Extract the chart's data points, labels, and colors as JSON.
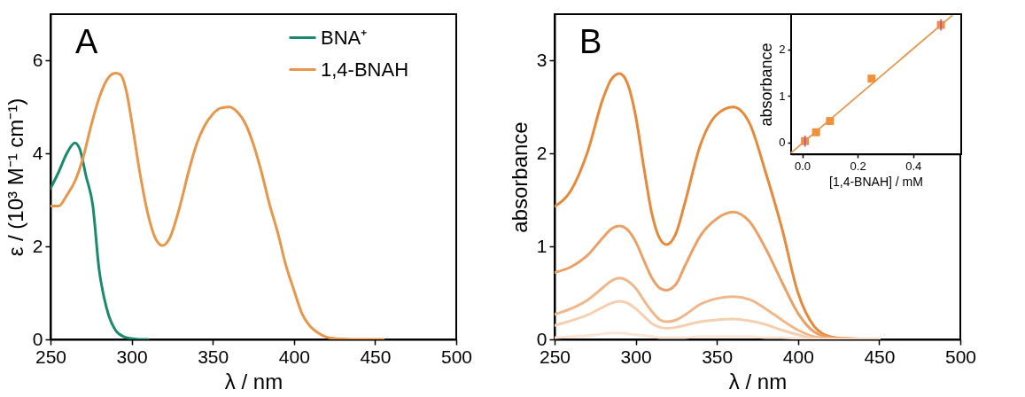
{
  "chart_data": [
    {
      "type": "line",
      "xlabel": "λ / nm",
      "ylabel": "ε / (10³ M⁻¹ cm⁻¹)",
      "xlim": [
        250,
        500
      ],
      "ylim": [
        0,
        7
      ],
      "xticks": [
        250,
        300,
        350,
        400,
        450,
        500
      ],
      "yticks": [
        0,
        2,
        4,
        6
      ],
      "grid": false,
      "legend": "top right",
      "annotations": [
        "A"
      ],
      "series": [
        {
          "name": "BNA⁺",
          "color": "#1a8a6e",
          "x": [
            250,
            255,
            260,
            265,
            268,
            272,
            276,
            280,
            283,
            286,
            290,
            295,
            300,
            305,
            310
          ],
          "values": [
            3.25,
            3.6,
            4.0,
            4.23,
            4.1,
            3.5,
            2.9,
            1.49,
            0.9,
            0.5,
            0.2,
            0.06,
            0.02,
            0.0,
            0.0
          ]
        },
        {
          "name": "1,4-BNAH",
          "color": "#e8964a",
          "x": [
            250,
            255,
            260,
            265,
            270,
            275,
            280,
            285,
            290,
            293,
            297,
            300,
            305,
            310,
            315,
            319,
            323,
            330,
            335,
            340,
            345,
            350,
            355,
            360,
            365,
            370,
            375,
            380,
            385,
            390,
            395,
            400,
            405,
            410,
            415,
            420,
            425,
            430,
            440,
            455
          ],
          "values": [
            2.87,
            2.87,
            3.1,
            3.4,
            3.9,
            4.6,
            5.2,
            5.6,
            5.73,
            5.7,
            5.3,
            4.7,
            3.6,
            2.7,
            2.15,
            2.02,
            2.15,
            2.9,
            3.6,
            4.2,
            4.6,
            4.85,
            4.98,
            5.0,
            4.9,
            4.65,
            4.2,
            3.6,
            2.9,
            2.3,
            1.6,
            1.06,
            0.55,
            0.28,
            0.14,
            0.05,
            0.02,
            0.01,
            0.0,
            0.0
          ]
        }
      ]
    },
    {
      "type": "line",
      "xlabel": "λ / nm",
      "ylabel": "absorbance",
      "xlim": [
        250,
        500
      ],
      "ylim": [
        0,
        3.5
      ],
      "xticks": [
        250,
        300,
        350,
        400,
        450,
        500
      ],
      "yticks": [
        0,
        1,
        2,
        3
      ],
      "grid": false,
      "annotations": [
        "B"
      ],
      "x": [
        250,
        260,
        270,
        280,
        285,
        290,
        295,
        300,
        305,
        310,
        315,
        319,
        325,
        330,
        340,
        350,
        360,
        370,
        380,
        390,
        400,
        410,
        420,
        430,
        450
      ],
      "series": [
        {
          "color": "#e8893a",
          "values": [
            1.43,
            1.6,
            2.0,
            2.6,
            2.8,
            2.86,
            2.75,
            2.4,
            1.85,
            1.35,
            1.08,
            1.02,
            1.15,
            1.45,
            2.1,
            2.42,
            2.5,
            2.33,
            1.8,
            1.2,
            0.5,
            0.14,
            0.03,
            0.01,
            0.0
          ]
        },
        {
          "color": "#eca066",
          "values": [
            0.72,
            0.78,
            0.9,
            1.1,
            1.19,
            1.22,
            1.18,
            1.05,
            0.85,
            0.66,
            0.55,
            0.53,
            0.6,
            0.78,
            1.12,
            1.3,
            1.37,
            1.27,
            0.98,
            0.62,
            0.28,
            0.08,
            0.02,
            0.01,
            0.0
          ]
        },
        {
          "color": "#f0b88a",
          "values": [
            0.27,
            0.33,
            0.42,
            0.56,
            0.63,
            0.66,
            0.63,
            0.55,
            0.42,
            0.3,
            0.21,
            0.19,
            0.21,
            0.26,
            0.38,
            0.44,
            0.46,
            0.43,
            0.33,
            0.21,
            0.1,
            0.03,
            0.01,
            0.0,
            0.0
          ]
        },
        {
          "color": "#f5d0b0",
          "values": [
            0.15,
            0.2,
            0.26,
            0.35,
            0.39,
            0.41,
            0.39,
            0.33,
            0.25,
            0.17,
            0.13,
            0.12,
            0.13,
            0.15,
            0.19,
            0.21,
            0.22,
            0.2,
            0.16,
            0.1,
            0.05,
            0.01,
            0.0,
            0.0,
            0.0
          ]
        },
        {
          "color": "#fae6d6",
          "values": [
            0.02,
            0.03,
            0.04,
            0.06,
            0.07,
            0.07,
            0.06,
            0.05,
            0.04,
            0.03,
            0.02,
            0.02,
            0.02,
            0.02,
            0.03,
            0.03,
            0.03,
            0.03,
            0.02,
            0.02,
            0.01,
            0.0,
            0.0,
            0.0,
            0.0
          ]
        }
      ]
    },
    {
      "type": "scatter",
      "xlabel": "[1,4-BNAH] / mM",
      "ylabel": "absorbance",
      "xlim": [
        -0.04,
        0.57
      ],
      "ylim": [
        -0.25,
        2.75
      ],
      "xticks": [
        {
          "value": 0,
          "label": "0.0"
        },
        0.2,
        0.4
      ],
      "yticks": [
        0,
        1,
        2
      ],
      "grid": false,
      "series": [
        {
          "type": "line",
          "color": "#e8964a",
          "x": [
            -0.04,
            0.54
          ],
          "values": [
            -0.22,
            2.72
          ]
        },
        {
          "type": "scatter",
          "marker": "square",
          "color": "#f0903a",
          "x": [
            0.01,
            0.05,
            0.1,
            0.25,
            0.5
          ],
          "values": [
            0.03,
            0.22,
            0.46,
            1.37,
            2.52
          ],
          "errors": [
            0.12,
            null,
            null,
            null,
            0.12
          ]
        }
      ]
    }
  ]
}
